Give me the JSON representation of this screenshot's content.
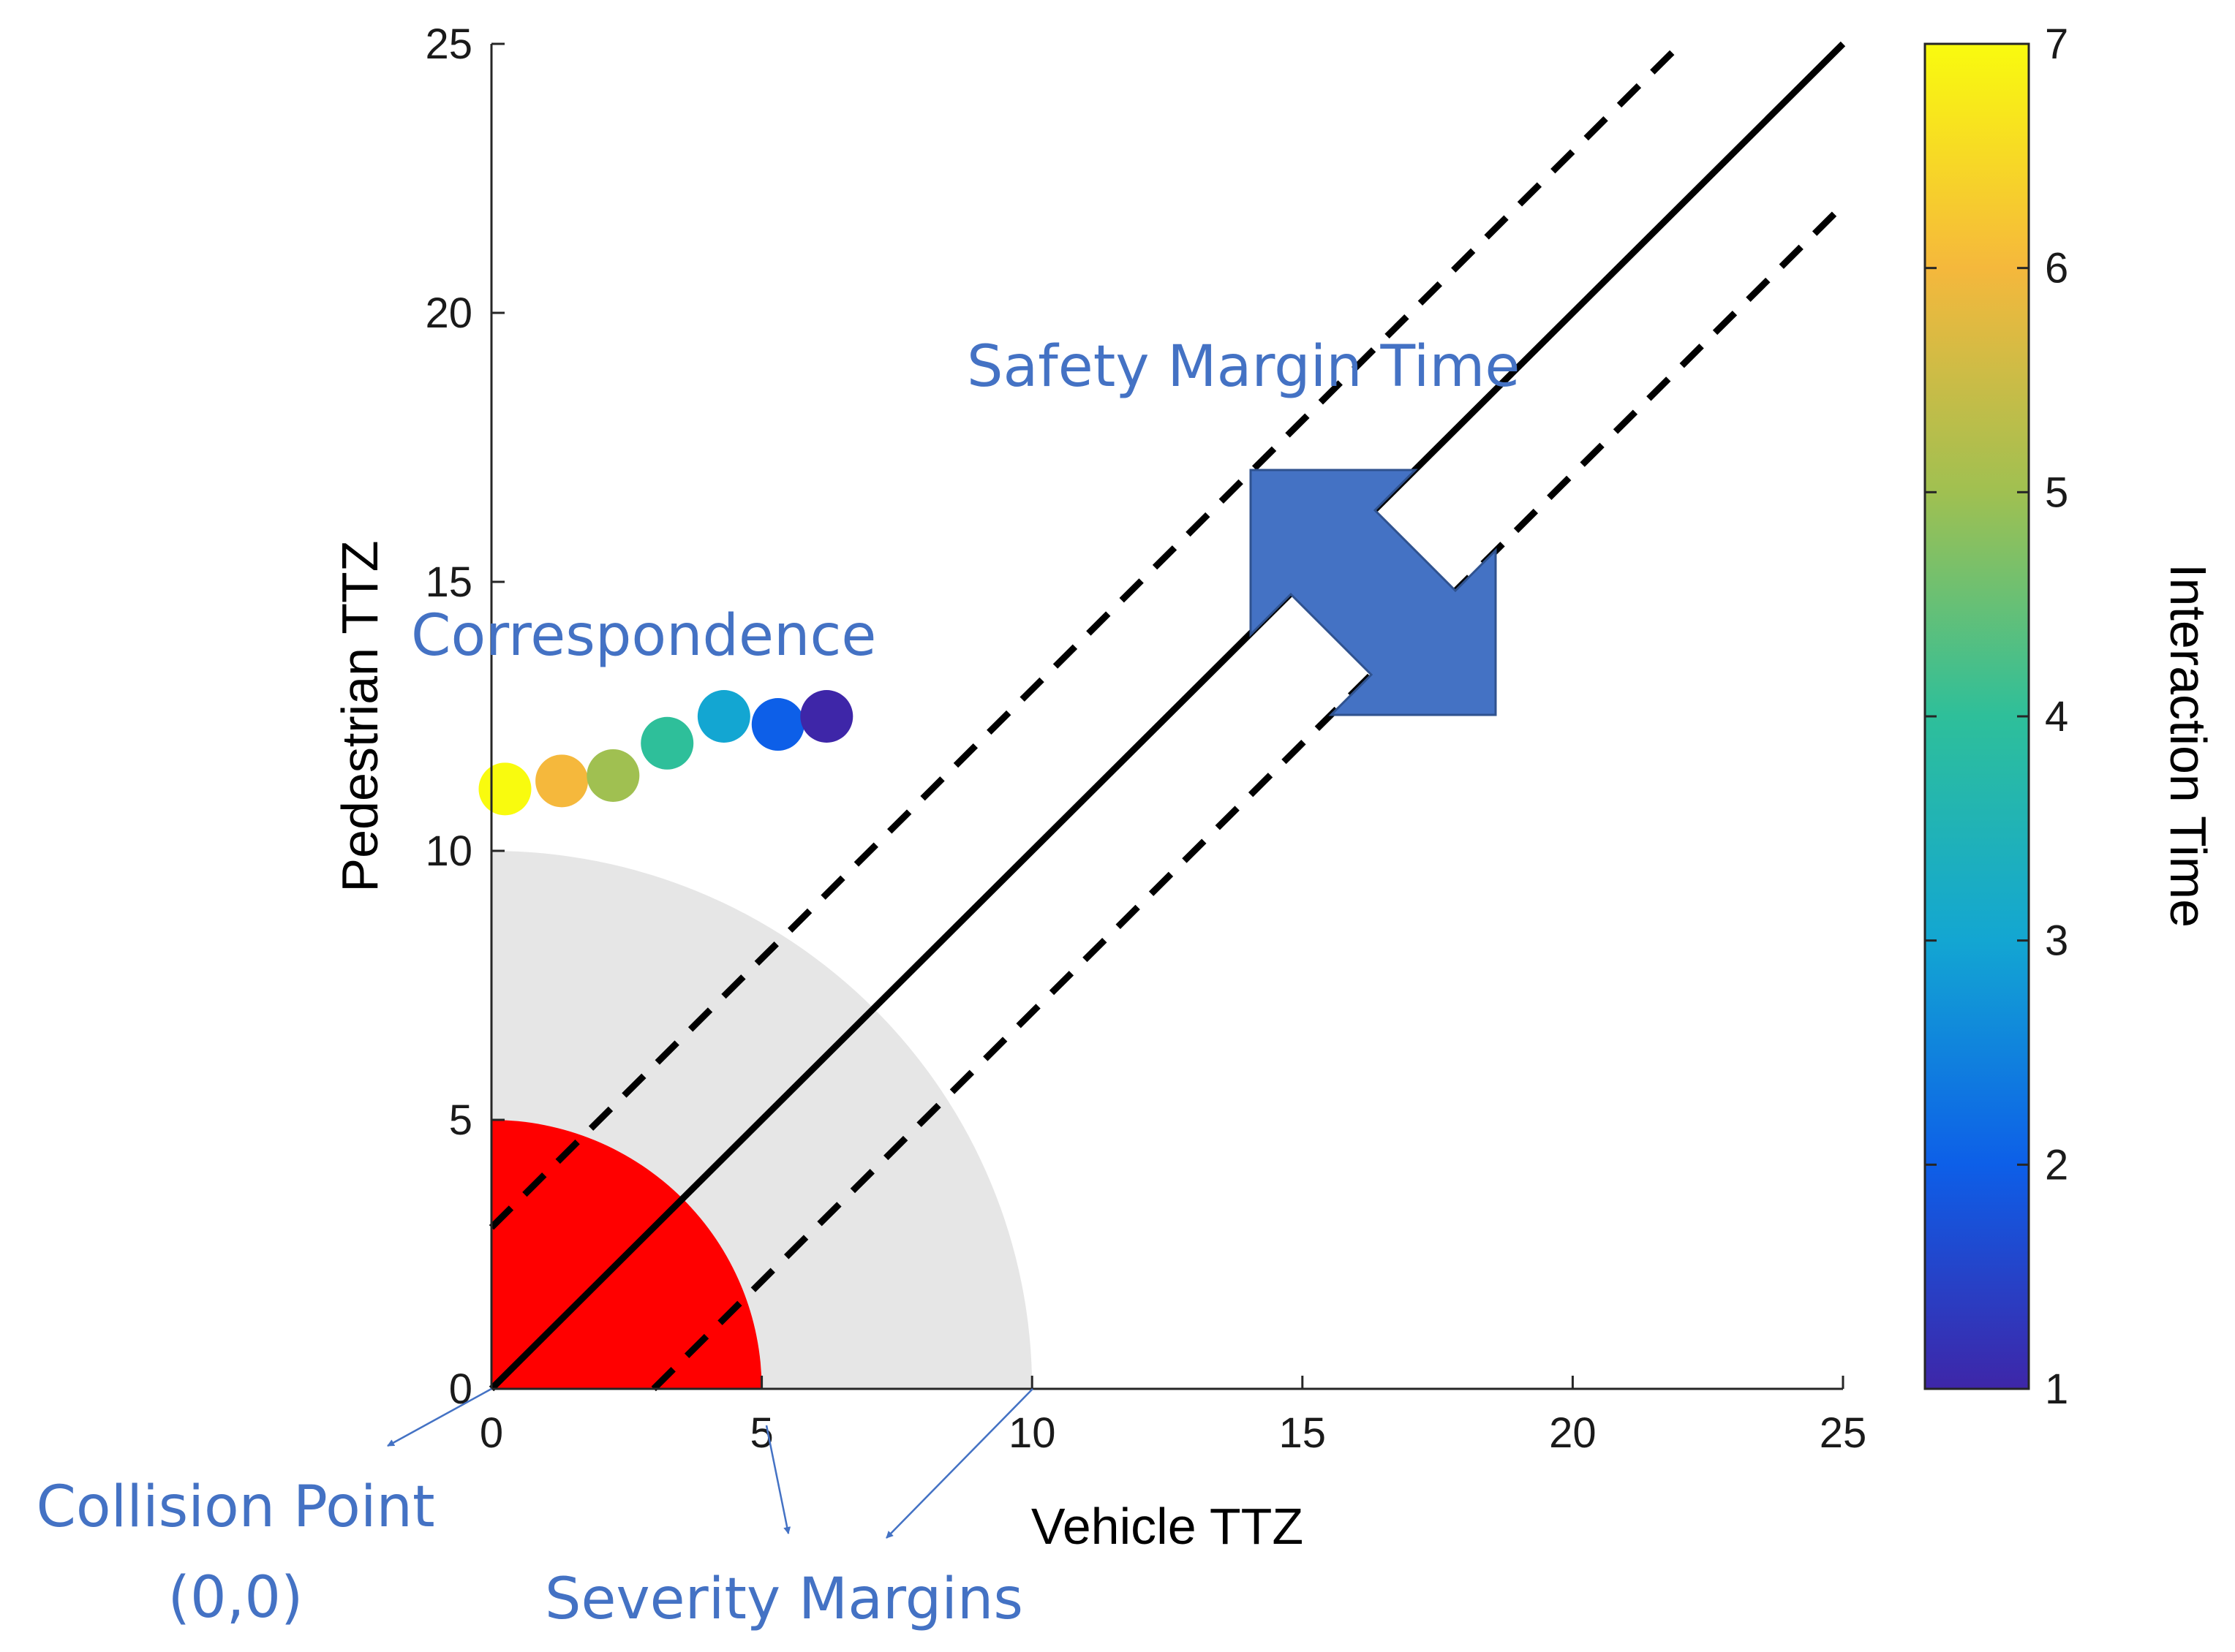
{
  "chart_data": {
    "type": "scatter",
    "title": "",
    "xlabel": "Vehicle TTZ",
    "ylabel": "Pedestrian TTZ",
    "xlim": [
      0,
      25
    ],
    "ylim": [
      0,
      25
    ],
    "xticks": [
      "0",
      "5",
      "10",
      "15",
      "20",
      "25"
    ],
    "yticks": [
      "0",
      "5",
      "10",
      "15",
      "20",
      "25"
    ],
    "grid": false,
    "severity_regions": [
      {
        "name": "inner-severity-margin",
        "radius": 5,
        "color": "#ff0000"
      },
      {
        "name": "outer-severity-margin",
        "radius": 10,
        "color": "#e6e6e6"
      }
    ],
    "lines": [
      {
        "name": "correspondence-line",
        "style": "solid",
        "x": [
          0,
          25
        ],
        "y": [
          0,
          25
        ]
      },
      {
        "name": "upper-safety-margin-line",
        "style": "dashed",
        "x": [
          0,
          22
        ],
        "y": [
          3,
          25
        ]
      },
      {
        "name": "lower-safety-margin-line",
        "style": "dashed",
        "x": [
          3,
          25
        ],
        "y": [
          0,
          22
        ]
      }
    ],
    "points": {
      "x": [
        0.25,
        1.3,
        2.25,
        3.25,
        4.3,
        5.3,
        6.2
      ],
      "y": [
        11.15,
        11.3,
        11.4,
        12.0,
        12.5,
        12.35,
        12.5
      ],
      "interaction_time": [
        7,
        6,
        5,
        4,
        3,
        2,
        1
      ]
    },
    "colorbar": {
      "label": "Interaction Time",
      "range": [
        1,
        7
      ],
      "ticks": [
        "1",
        "2",
        "3",
        "4",
        "5",
        "6",
        "7"
      ],
      "colormap": [
        "#3e26a8",
        "#0d5fe8",
        "#13a6d2",
        "#2ebf9a",
        "#a0c051",
        "#f5b83c",
        "#f9fb0e"
      ]
    },
    "annotations": {
      "safety_margin_time": "Safety Margin Time",
      "correspondence": "Correspondence",
      "collision_point": "Collision Point",
      "collision_coords": "(0,0)",
      "severity_margins": "Severity Margins"
    }
  },
  "colors": {
    "annotation_text": "#4472c4",
    "arrow_fill": "#4472c4",
    "arrow_stroke": "#2f528f",
    "axis": "#262626",
    "line": "#000000"
  }
}
